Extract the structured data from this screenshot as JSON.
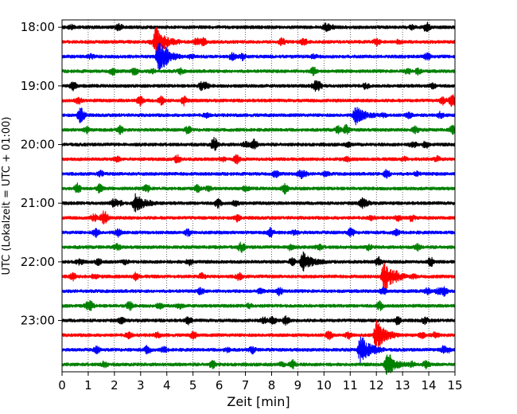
{
  "chart_data": {
    "type": "line",
    "subtype": "helicorder",
    "xlabel": "Zeit  [min]",
    "ylabel": "UTC (Lokalzeit = UTC + 01:00)",
    "xlim": [
      0,
      15
    ],
    "x_ticks": [
      "0",
      "1",
      "2",
      "3",
      "4",
      "5",
      "6",
      "7",
      "8",
      "9",
      "10",
      "11",
      "12",
      "13",
      "14",
      "15"
    ],
    "y_ticks": [
      "18:00",
      "19:00",
      "20:00",
      "21:00",
      "22:00",
      "23:00"
    ],
    "trace_minutes": 15,
    "row_count": 24,
    "grid": "vertical dotted lines at each minute",
    "colors_cycle": [
      "#000000",
      "#ff0000",
      "#0000ff",
      "#008000"
    ],
    "events": [
      {
        "row": 1,
        "minute": 3.6,
        "amplitude": "large"
      },
      {
        "row": 2,
        "minute": 3.7,
        "amplitude": "large"
      },
      {
        "row": 6,
        "minute": 11.2,
        "amplitude": "medium"
      },
      {
        "row": 12,
        "minute": 2.8,
        "amplitude": "medium"
      },
      {
        "row": 16,
        "minute": 9.2,
        "amplitude": "medium"
      },
      {
        "row": 17,
        "minute": 12.3,
        "amplitude": "large"
      },
      {
        "row": 21,
        "minute": 12.0,
        "amplitude": "large"
      },
      {
        "row": 22,
        "minute": 11.4,
        "amplitude": "large"
      },
      {
        "row": 23,
        "minute": 12.4,
        "amplitude": "medium"
      }
    ]
  }
}
